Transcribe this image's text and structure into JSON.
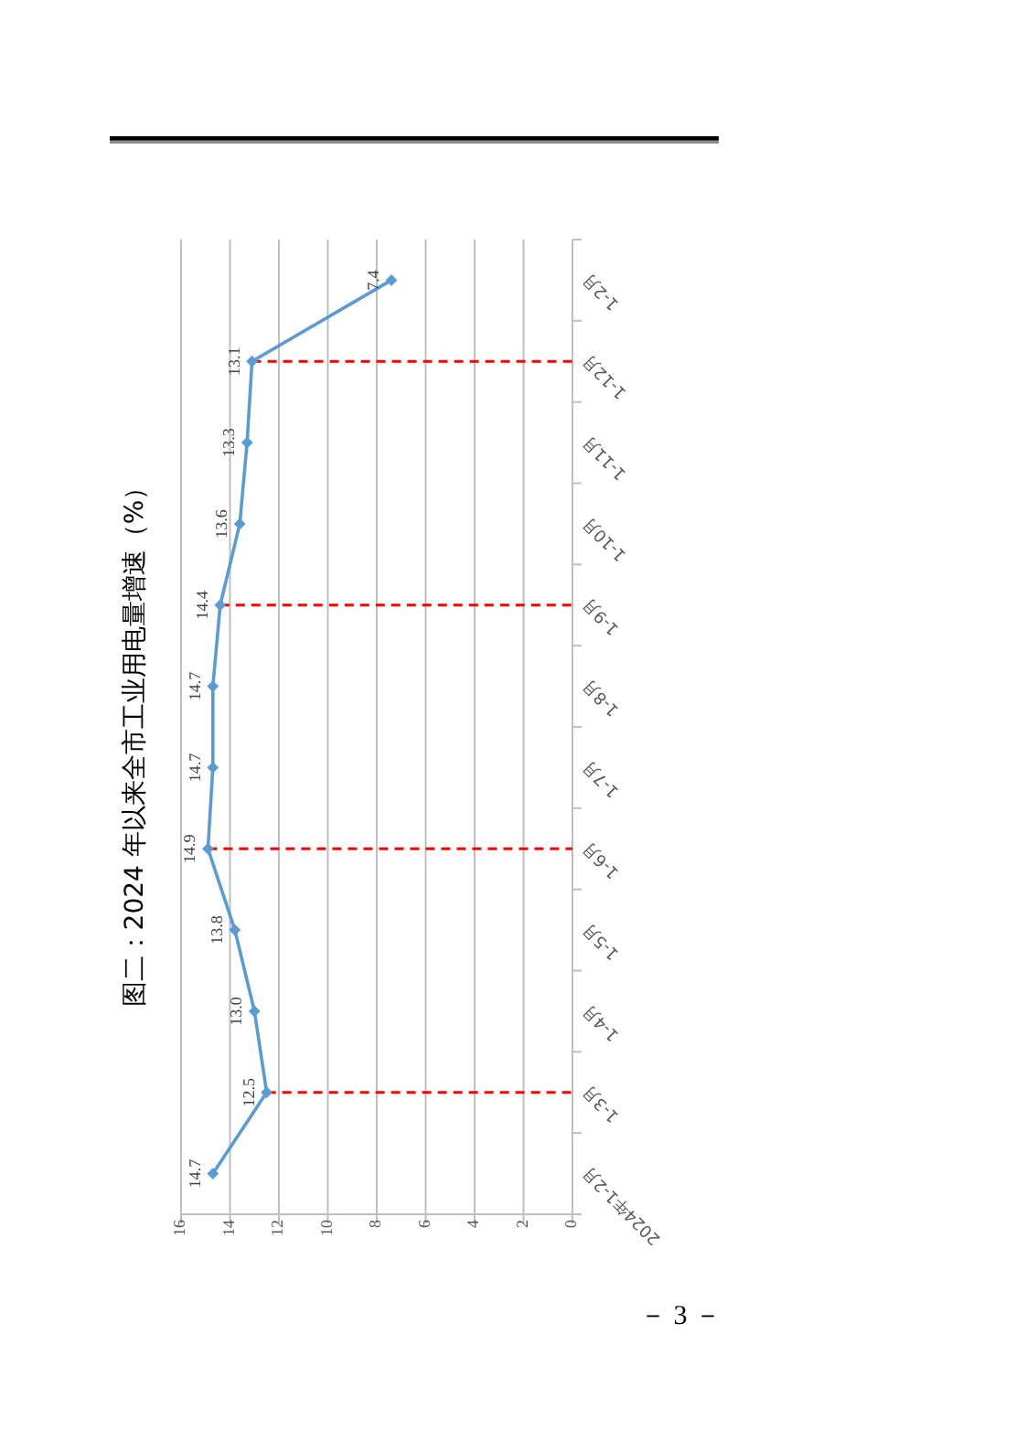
{
  "chart_data": {
    "type": "line",
    "orientation": "horizontal",
    "title": "图二：2024 年以来全市工业用电量增速（%）",
    "categories": [
      "1-2月",
      "1-12月",
      "1-11月",
      "1-10月",
      "1-9月",
      "1-8月",
      "1-7月",
      "1-6月",
      "1-5月",
      "1-4月",
      "1-3月",
      "2024年1-2月"
    ],
    "series": [
      {
        "color": "#5b9bd5",
        "values": [
          7.4,
          13.1,
          13.3,
          13.6,
          14.4,
          14.7,
          14.7,
          14.9,
          13.8,
          13.0,
          12.5,
          14.7
        ],
        "value_labels": [
          "7.4",
          "13.1",
          "13.3",
          "13.6",
          "14.4",
          "14.7",
          "14.7",
          "14.9",
          "13.8",
          "13.0",
          "12.5",
          "14.7"
        ]
      }
    ],
    "xlim": [
      16,
      0
    ],
    "xticks": [
      16,
      14,
      12,
      10,
      8,
      6,
      4,
      2,
      0
    ],
    "grid": "x",
    "marker": "diamond",
    "ref_lines": [
      {
        "axis": "y",
        "value": "1-12月",
        "color": "#ff0000",
        "line_style": "dashed"
      },
      {
        "axis": "y",
        "value": "1-9月",
        "color": "#ff0000",
        "line_style": "dashed"
      },
      {
        "axis": "y",
        "value": "1-6月",
        "color": "#ff0000",
        "line_style": "dashed"
      },
      {
        "axis": "y",
        "value": "1-3月",
        "color": "#ff0000",
        "line_style": "dashed"
      }
    ],
    "annotations": [
      "－ 3 －"
    ]
  }
}
